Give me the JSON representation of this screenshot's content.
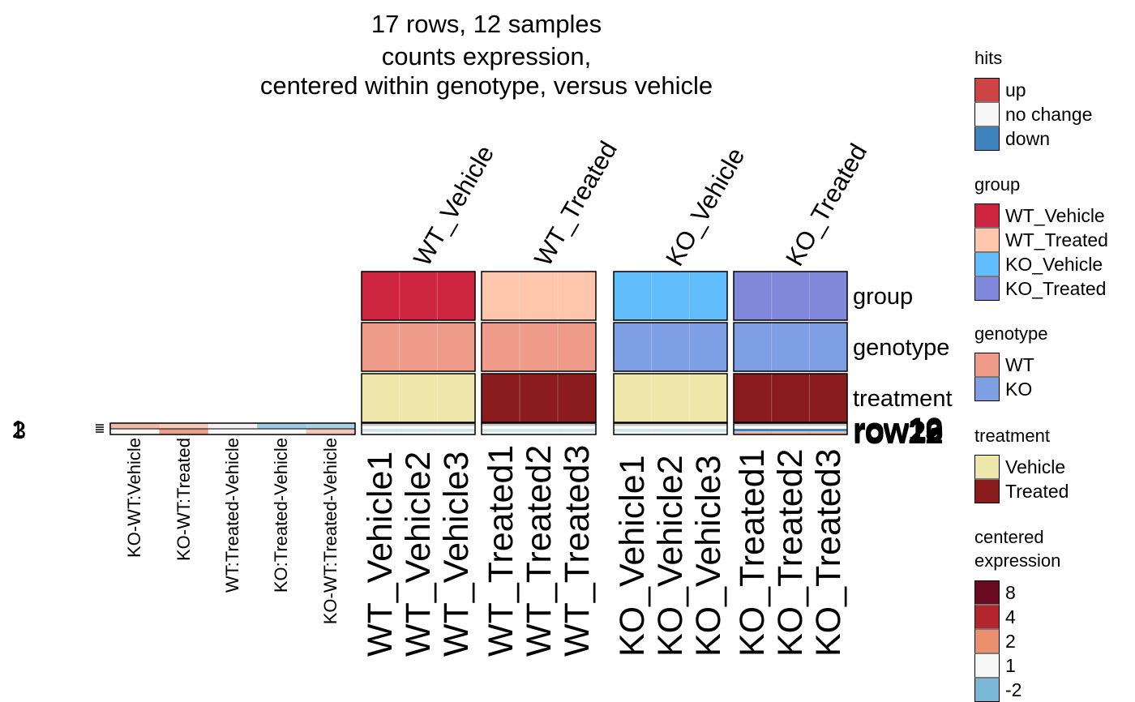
{
  "title": [
    "17 rows, 12 samples",
    "counts expression,",
    "centered within genotype, versus vehicle"
  ],
  "chart_data": {
    "type": "heatmap",
    "n_rows": 17,
    "n_samples": 12,
    "column_groups": [
      "WT_Vehicle",
      "WT_Treated",
      "KO_Vehicle",
      "KO_Treated"
    ],
    "samples": [
      "WT_Vehicle1",
      "WT_Vehicle2",
      "WT_Vehicle3",
      "WT_Treated1",
      "WT_Treated2",
      "WT_Treated3",
      "KO_Vehicle1",
      "KO_Vehicle2",
      "KO_Vehicle3",
      "KO_Treated1",
      "KO_Treated2",
      "KO_Treated3"
    ],
    "sample_group": [
      "WT_Vehicle",
      "WT_Vehicle",
      "WT_Vehicle",
      "WT_Treated",
      "WT_Treated",
      "WT_Treated",
      "KO_Vehicle",
      "KO_Vehicle",
      "KO_Vehicle",
      "KO_Treated",
      "KO_Treated",
      "KO_Treated"
    ],
    "sample_genotype": [
      "WT",
      "WT",
      "WT",
      "WT",
      "WT",
      "WT",
      "KO",
      "KO",
      "KO",
      "KO",
      "KO",
      "KO"
    ],
    "sample_treatment": [
      "Vehicle",
      "Vehicle",
      "Vehicle",
      "Treated",
      "Treated",
      "Treated",
      "Vehicle",
      "Vehicle",
      "Vehicle",
      "Treated",
      "Treated",
      "Treated"
    ],
    "annotation_labels": [
      "group",
      "genotype",
      "treatment"
    ],
    "row_label_text": "row",
    "row_strip_colors": [
      "#c8c8c8",
      "#ffffff",
      "#a9cfe0",
      "#ffffff"
    ],
    "expression_values": [
      [
        0.6,
        0.6,
        0.6,
        1.3,
        1.3,
        1.3,
        0.4,
        0.4,
        0.4,
        -2.5,
        -2.5,
        -2.5
      ],
      [
        0.2,
        0.2,
        0.2,
        -0.4,
        -0.4,
        -0.4,
        0.2,
        0.2,
        0.2,
        0.3,
        0.3,
        0.3
      ],
      [
        0.0,
        0.0,
        0.0,
        0.9,
        0.9,
        0.9,
        0.1,
        0.1,
        0.1,
        1.9,
        1.9,
        1.9
      ]
    ],
    "hits_columns": [
      "KO-WT:Vehicle",
      "KO-WT:Treated",
      "WT:Treated-Vehicle",
      "KO:Treated-Vehicle",
      "KO-WT:Treated-Vehicle"
    ],
    "hits_left_labels": [
      "1",
      "2",
      "3"
    ],
    "hits_strip_colors": [
      [
        "#f2b8a6",
        "#f5c9bb",
        "#f2f2f2",
        "#9ecbe3",
        "#a9d0e6"
      ],
      [
        "#f7f7f7",
        "#e8a08a",
        "#f7f7f7",
        "#f7f7f7",
        "#f4c7b8"
      ]
    ],
    "legends": {
      "hits": {
        "title": "hits",
        "items": [
          {
            "label": "up",
            "color": "#cc4444"
          },
          {
            "label": "no change",
            "color": "#f7f7f7"
          },
          {
            "label": "down",
            "color": "#3e82bd"
          }
        ]
      },
      "group": {
        "title": "group",
        "items": [
          {
            "label": "WT_Vehicle",
            "color": "#cd2440"
          },
          {
            "label": "WT_Treated",
            "color": "#fec6ad"
          },
          {
            "label": "KO_Vehicle",
            "color": "#62bdfd"
          },
          {
            "label": "KO_Treated",
            "color": "#8088d9"
          }
        ]
      },
      "genotype": {
        "title": "genotype",
        "items": [
          {
            "label": "WT",
            "color": "#ee9b89"
          },
          {
            "label": "KO",
            "color": "#7e9fe3"
          }
        ]
      },
      "treatment": {
        "title": "treatment",
        "items": [
          {
            "label": "Vehicle",
            "color": "#ede7ac"
          },
          {
            "label": "Treated",
            "color": "#8b1c1d"
          }
        ]
      },
      "centered_expression": {
        "title": [
          "centered",
          "expression"
        ],
        "items": [
          {
            "label": "8",
            "color": "#6a0b22"
          },
          {
            "label": "4",
            "color": "#b3262e"
          },
          {
            "label": "2",
            "color": "#eb906f"
          },
          {
            "label": "1",
            "color": "#f7f7f7"
          },
          {
            "label": "-2",
            "color": "#7ab6d6"
          }
        ]
      }
    }
  }
}
